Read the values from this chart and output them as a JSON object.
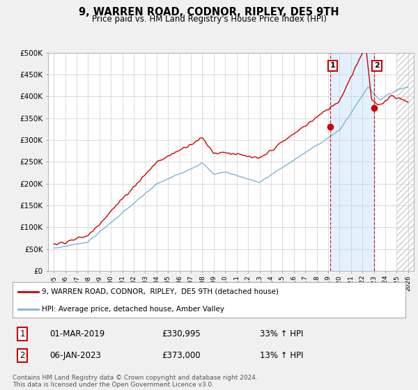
{
  "title": "9, WARREN ROAD, CODNOR, RIPLEY, DE5 9TH",
  "subtitle": "Price paid vs. HM Land Registry's House Price Index (HPI)",
  "ylabel_ticks": [
    "£0",
    "£50K",
    "£100K",
    "£150K",
    "£200K",
    "£250K",
    "£300K",
    "£350K",
    "£400K",
    "£450K",
    "£500K"
  ],
  "ytick_vals": [
    0,
    50000,
    100000,
    150000,
    200000,
    250000,
    300000,
    350000,
    400000,
    450000,
    500000
  ],
  "xlim": [
    1994.5,
    2026.5
  ],
  "ylim": [
    0,
    500000
  ],
  "xticks": [
    1995,
    1996,
    1997,
    1998,
    1999,
    2000,
    2001,
    2002,
    2003,
    2004,
    2005,
    2006,
    2007,
    2008,
    2009,
    2010,
    2011,
    2012,
    2013,
    2014,
    2015,
    2016,
    2017,
    2018,
    2019,
    2020,
    2021,
    2022,
    2023,
    2024,
    2025,
    2026
  ],
  "red_line_color": "#cc0000",
  "blue_line_color": "#7fb3d3",
  "sale1_x": 2019.17,
  "sale1_y": 330995,
  "sale2_x": 2023.02,
  "sale2_y": 373000,
  "vline_color": "#cc0000",
  "vline_color2": "#cc0000",
  "shade_color": "#ddeeff",
  "hatch_start": 2025.0,
  "legend_line1": "9, WARREN ROAD, CODNOR,  RIPLEY,  DE5 9TH (detached house)",
  "legend_line2": "HPI: Average price, detached house, Amber Valley",
  "table_row1": [
    "1",
    "01-MAR-2019",
    "£330,995",
    "33% ↑ HPI"
  ],
  "table_row2": [
    "2",
    "06-JAN-2023",
    "£373,000",
    "13% ↑ HPI"
  ],
  "footnote": "Contains HM Land Registry data © Crown copyright and database right 2024.\nThis data is licensed under the Open Government Licence v3.0.",
  "bg_color": "#f0f0f0",
  "plot_bg_color": "#ffffff"
}
